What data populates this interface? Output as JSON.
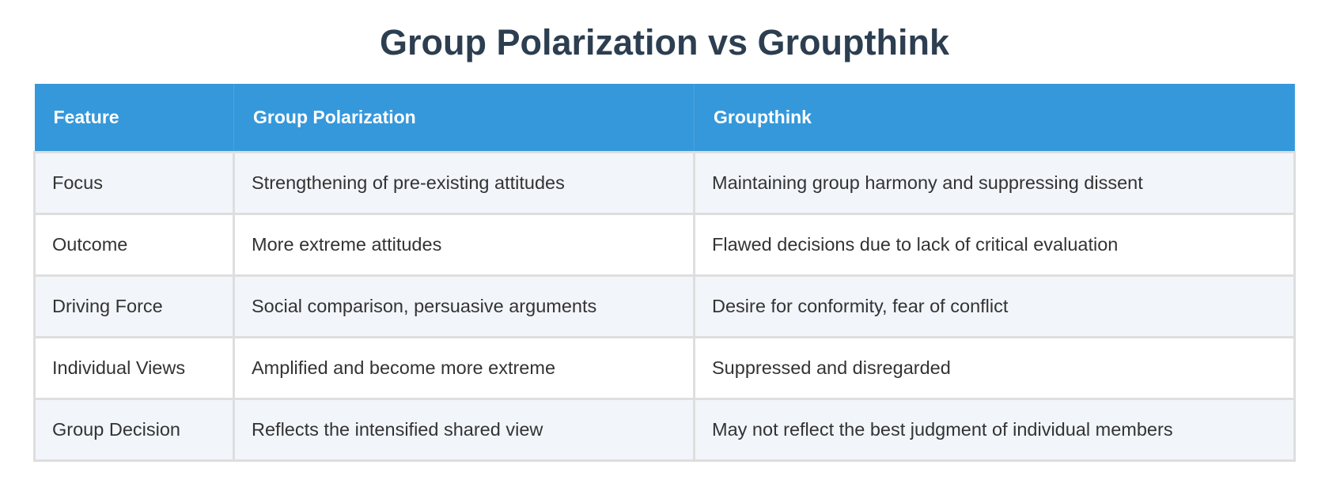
{
  "title": "Group Polarization vs Groupthink",
  "headers": [
    "Feature",
    "Group Polarization",
    "Groupthink"
  ],
  "rows": [
    [
      "Focus",
      "Strengthening of pre-existing attitudes",
      "Maintaining group harmony and suppressing dissent"
    ],
    [
      "Outcome",
      "More extreme attitudes",
      "Flawed decisions due to lack of critical evaluation"
    ],
    [
      "Driving Force",
      "Social comparison, persuasive arguments",
      "Desire for conformity, fear of conflict"
    ],
    [
      "Individual Views",
      "Amplified and become more extreme",
      "Suppressed and disregarded"
    ],
    [
      "Group Decision",
      "Reflects the intensified shared view",
      "May not reflect the best judgment of individual members"
    ]
  ],
  "colors": {
    "header_bg": "#3598db",
    "title": "#2c3e50",
    "stripe": "#f2f5fa"
  }
}
